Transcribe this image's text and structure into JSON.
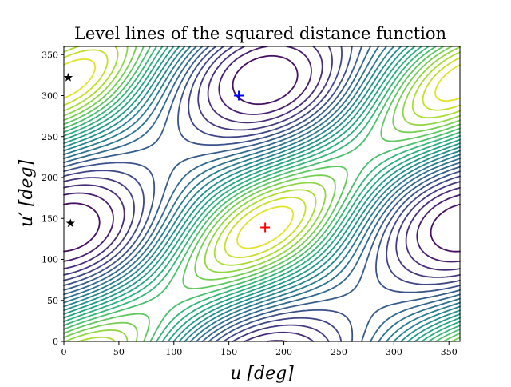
{
  "chart_data": {
    "type": "contour",
    "title": "Level lines of the squared distance function",
    "xlabel": "u [deg]",
    "ylabel": "u′ [deg]",
    "xlim": [
      0,
      360
    ],
    "ylim": [
      0,
      360
    ],
    "xticks": [
      "0",
      "50",
      "100",
      "150",
      "200",
      "250",
      "300",
      "350"
    ],
    "yticks": [
      "0",
      "50",
      "100",
      "150",
      "200",
      "250",
      "300",
      "350"
    ],
    "colormap": "viridis",
    "grid": false,
    "markers": [
      {
        "name": "maximum",
        "symbol": "plus",
        "color": "#ff0000",
        "x": 183,
        "y": 139
      },
      {
        "name": "minimum",
        "symbol": "plus",
        "color": "#0000ff",
        "x": 159,
        "y": 300
      },
      {
        "name": "critical-point-1",
        "symbol": "star",
        "color": "#000000",
        "x": 4,
        "y": 322
      },
      {
        "name": "critical-point-2",
        "symbol": "star",
        "color": "#000000",
        "x": 6,
        "y": 144
      }
    ]
  }
}
